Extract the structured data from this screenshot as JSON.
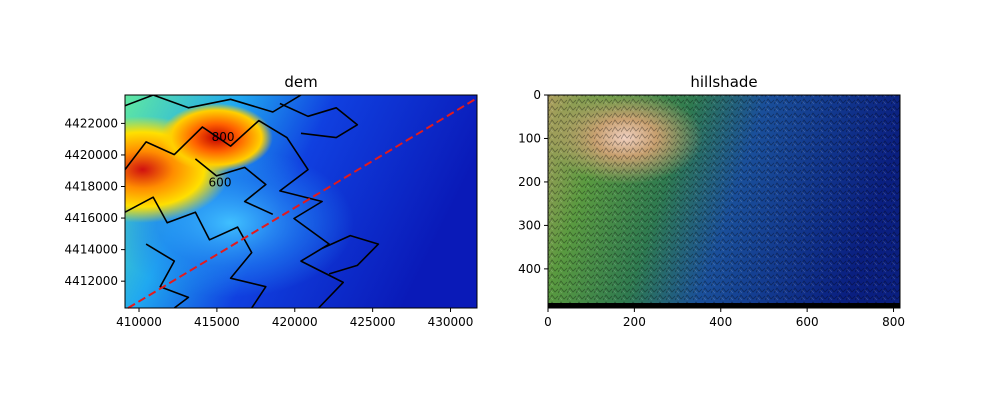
{
  "chart_data": [
    {
      "type": "heatmap",
      "title": "dem",
      "xlabel": "",
      "ylabel": "",
      "xlim": [
        409100,
        431700
      ],
      "ylim": [
        4410300,
        4423800
      ],
      "xticks": [
        "410000",
        "415000",
        "420000",
        "425000",
        "430000"
      ],
      "xtick_values": [
        410000,
        415000,
        420000,
        425000,
        430000
      ],
      "yticks": [
        "4412000",
        "4414000",
        "4416000",
        "4418000",
        "4420000",
        "4422000"
      ],
      "ytick_values": [
        4412000,
        4414000,
        4416000,
        4418000,
        4420000,
        4422000
      ],
      "colormap": "jet",
      "contour_labels": [
        {
          "text": "600",
          "x": 415200,
          "y": 4418000
        },
        {
          "text": "800",
          "x": 415400,
          "y": 4420900
        }
      ],
      "profile_line": {
        "x": [
          409300,
          431700
        ],
        "y": [
          4410300,
          4423600
        ],
        "color": "#e41a1c",
        "style": "dashed"
      },
      "grid": false
    },
    {
      "type": "heatmap",
      "title": "hillshade",
      "xlabel": "",
      "ylabel": "",
      "xlim": [
        0,
        815
      ],
      "ylim": [
        490,
        0
      ],
      "xticks": [
        "0",
        "200",
        "400",
        "600",
        "800"
      ],
      "xtick_values": [
        0,
        200,
        400,
        600,
        800
      ],
      "yticks": [
        "0",
        "100",
        "200",
        "300",
        "400"
      ],
      "ytick_values": [
        0,
        100,
        200,
        300,
        400
      ],
      "colormap": "gist_earth",
      "grid": false
    }
  ]
}
